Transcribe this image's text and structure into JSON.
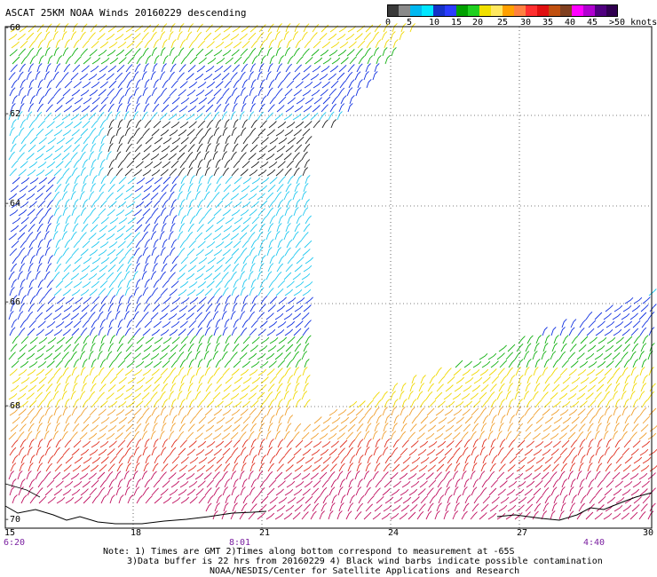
{
  "title": "ASCAT 25KM NOAA Winds 20160229 descending",
  "legend": {
    "labels": [
      "0",
      "5",
      "10",
      "15",
      "20",
      "25",
      "30",
      "35",
      "40",
      "45",
      ">50 knots"
    ],
    "colors": [
      "#3a3a3a",
      "#8a8a8a",
      "#00b8f0",
      "#00e6ff",
      "#1432c8",
      "#2a3cff",
      "#00a000",
      "#20d020",
      "#f0e000",
      "#ffe860",
      "#ffa000",
      "#ff8040",
      "#ff3030",
      "#e01010",
      "#c05010",
      "#804020",
      "#ff00ff",
      "#b000d0",
      "#500080",
      "#300050"
    ]
  },
  "latitudes": [
    "-60",
    "-62",
    "-64",
    "-66",
    "-68",
    "-70"
  ],
  "longitudes": [
    "15",
    "18",
    "21",
    "24",
    "27",
    "30"
  ],
  "times": [
    "6:20",
    "8:01",
    "4:40"
  ],
  "notes": {
    "line1": "Note: 1) Times are GMT 2)Times along bottom correspond to measurement at -65S",
    "line2": "3)Data buffer is 22 hrs from 20160229 4) Black wind barbs indicate possible contamination",
    "line3": "NOAA/NESDIS/Center for Satellite Applications and Research"
  },
  "colors": {
    "time_label": "#7a1fa0",
    "grid": "#000000"
  }
}
